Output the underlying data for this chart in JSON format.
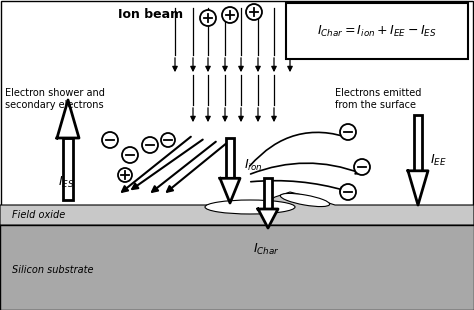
{
  "title": "Ion beam",
  "formula": "$I_{Char} = I_{ion} + I_{EE} - I_{ES}$",
  "bg_color": "#ffffff",
  "field_oxide_color": "#c8c8c8",
  "silicon_color": "#a8a8a8",
  "text_electron_shower": "Electron shower and\nsecondary electrons",
  "text_electrons_emitted": "Electrons emitted\nfrom the surface",
  "text_field_oxide": "Field oxide",
  "text_silicon": "Silicon substrate",
  "label_IES": "$I_{ES}$",
  "label_Iion": "$I_{ion}$",
  "label_IEE": "$I_{EE}$",
  "label_IChar": "$I_{Char}$"
}
